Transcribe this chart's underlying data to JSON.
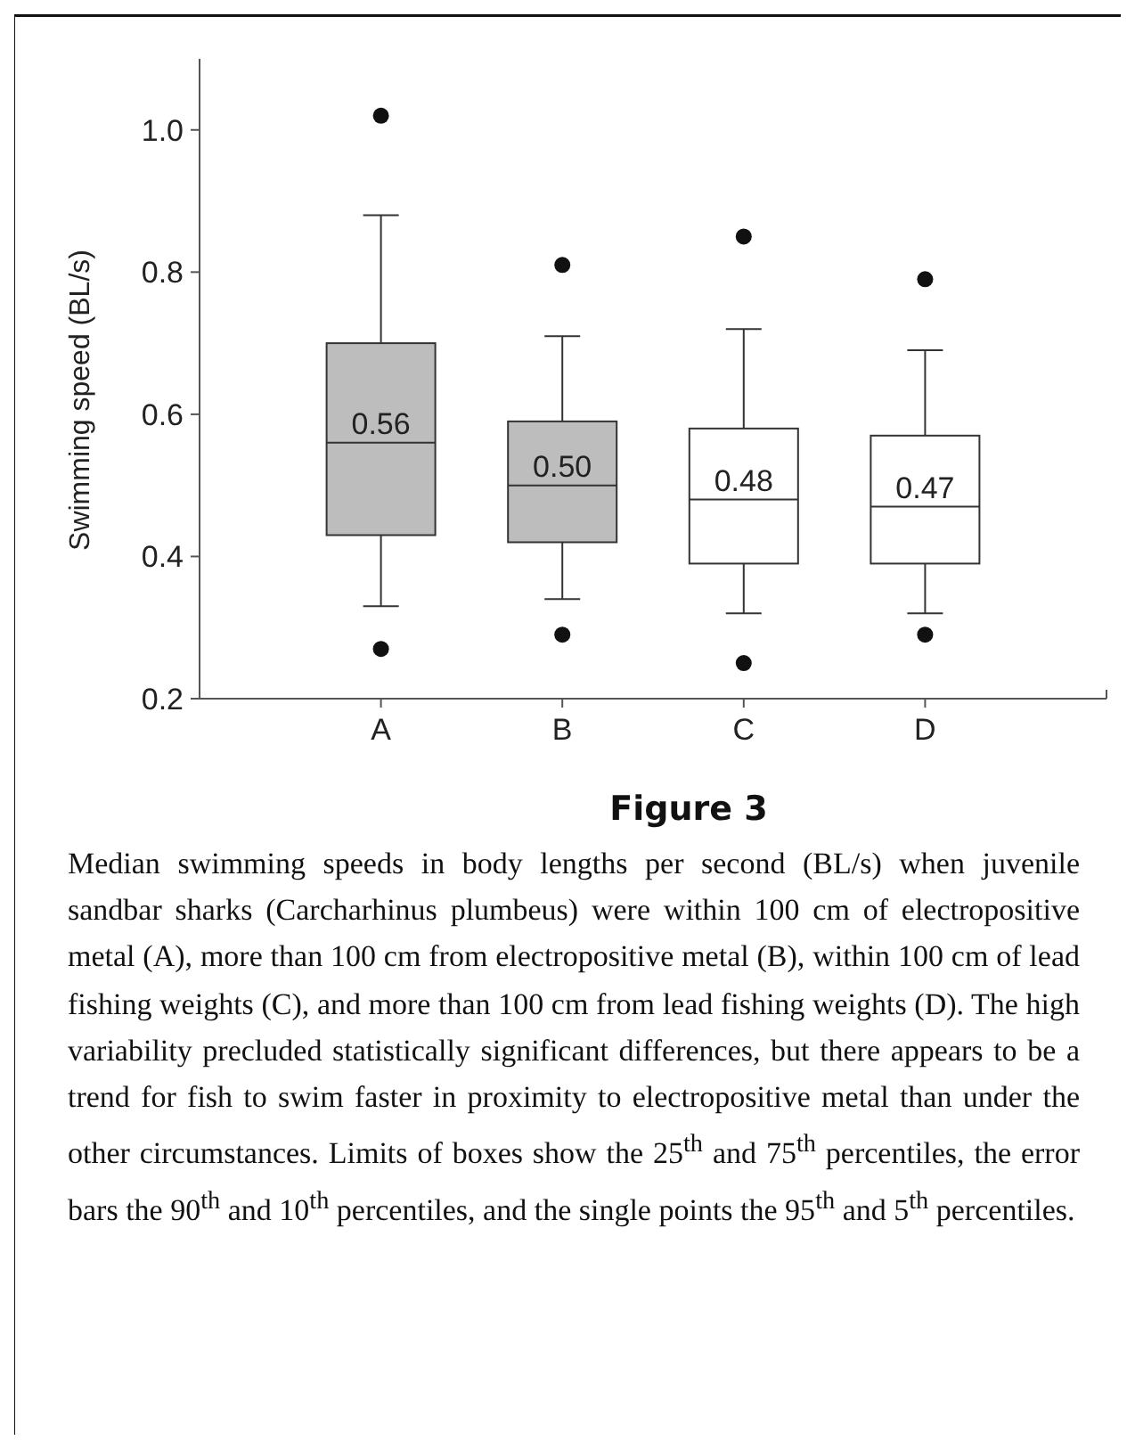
{
  "chart_data": {
    "type": "box",
    "title": "Figure 3",
    "ylabel": "Swimming speed (BL/s)",
    "categories": [
      "A",
      "B",
      "C",
      "D"
    ],
    "boxes": [
      {
        "low": 0.33,
        "q1": 0.43,
        "median": 0.56,
        "q3": 0.7,
        "high": 0.88,
        "outliers": [
          1.02,
          0.27
        ]
      },
      {
        "low": 0.34,
        "q1": 0.42,
        "median": 0.5,
        "q3": 0.59,
        "high": 0.71,
        "outliers": [
          0.81,
          0.29
        ]
      },
      {
        "low": 0.32,
        "q1": 0.39,
        "median": 0.48,
        "q3": 0.58,
        "high": 0.72,
        "outliers": [
          0.85,
          0.25
        ]
      },
      {
        "low": 0.32,
        "q1": 0.39,
        "median": 0.47,
        "q3": 0.57,
        "high": 0.69,
        "outliers": [
          0.79,
          0.29
        ]
      }
    ],
    "colors": [
      "#bdbdbd",
      "#bdbdbd",
      "#ffffff",
      "#ffffff"
    ],
    "ylim": [
      0.2,
      1.1
    ],
    "yticks": [
      {
        "value": 0.2,
        "label": "0.2"
      },
      {
        "value": 0.4,
        "label": "0.4"
      },
      {
        "value": 0.6,
        "label": "0.6"
      },
      {
        "value": 0.8,
        "label": "0.8"
      },
      {
        "value": 1.0,
        "label": "1.0"
      }
    ],
    "value_labels": [
      "0.56",
      "0.50",
      "0.48",
      "0.47"
    ],
    "grid": false,
    "annotations": [
      "Median swimming speeds in body lengths per second (BL/s) when juvenile sandbar sharks (Carcharhinus plumbeus) were within 100 cm of electropositive metal (A), more than 100 cm from electropositive metal (B), within 100 cm of lead fishing weights (C), and more than 100 cm from lead fishing weights (D). The high variability precluded statistically significant differences, but there appears to be a trend for fish to swim faster in proximity to electropositive metal than under the other circumstances. Limits of boxes show the 25$^{th}$ and 75$^{th}$ percentiles, the error bars the 90$^{th}$ and 10$^{th}$ percentiles, and the single points the 95$^{th}$ and 5$^{th}$ percentiles."
    ]
  }
}
